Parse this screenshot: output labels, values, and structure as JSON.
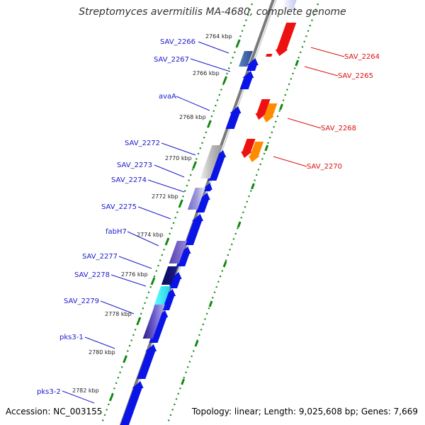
{
  "title": "Streptomyces avermitilis MA-4680, complete genome",
  "accession_text": "Accession: NC_003155",
  "summary_text": "Topology: linear; Length: 9,025,608 bp; Genes: 7,669",
  "colors": {
    "forward_gene": "#0a14e6",
    "reverse_gene": "#ee1111",
    "reverse_gene_alt": "#ff8c00",
    "backbone": "#7a7a7a",
    "tick": "#118811",
    "label_forward": "#1a1acc",
    "label_reverse": "#dd1111"
  },
  "ticks": [
    {
      "label": "2764 kbp"
    },
    {
      "label": "2766 kbp"
    },
    {
      "label": "2768 kbp"
    },
    {
      "label": "2770 kbp"
    },
    {
      "label": "2772 kbp"
    },
    {
      "label": "2774 kbp"
    },
    {
      "label": "2776 kbp"
    },
    {
      "label": "2778 kbp"
    },
    {
      "label": "2780 kbp"
    },
    {
      "label": "2782 kbp"
    }
  ],
  "gene_labels_left": [
    "SAV_2266",
    "SAV_2267",
    "avaA",
    "SAV_2272",
    "SAV_2273",
    "SAV_2274",
    "SAV_2275",
    "fabH7",
    "SAV_2277",
    "SAV_2278",
    "SAV_2279",
    "pks3-1",
    "pks3-2"
  ],
  "gene_labels_right": [
    "SAV_2264",
    "SAV_2265",
    "SAV_2268",
    "SAV_2270"
  ]
}
